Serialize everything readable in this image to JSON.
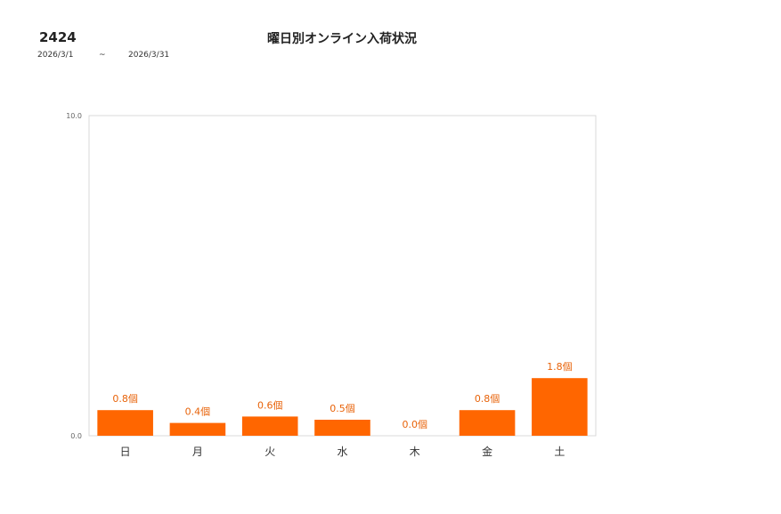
{
  "header": {
    "code": "2424",
    "title": "曜日別オンライン入荷状況",
    "date_from": "2026/3/1",
    "date_sep": "~",
    "date_to": "2026/3/31"
  },
  "chart_data": {
    "type": "bar",
    "title": "曜日別オンライン入荷状況",
    "categories": [
      "日",
      "月",
      "火",
      "水",
      "木",
      "金",
      "土"
    ],
    "values": [
      0.8,
      0.4,
      0.6,
      0.5,
      0.0,
      0.8,
      1.8
    ],
    "value_suffix": "個",
    "ylim": [
      0,
      10
    ],
    "ytick_labels": [
      "0.0",
      "10.0"
    ],
    "grid": false,
    "legend": "none",
    "bar_color": "#ff6600",
    "label_color": "#e8630a"
  }
}
